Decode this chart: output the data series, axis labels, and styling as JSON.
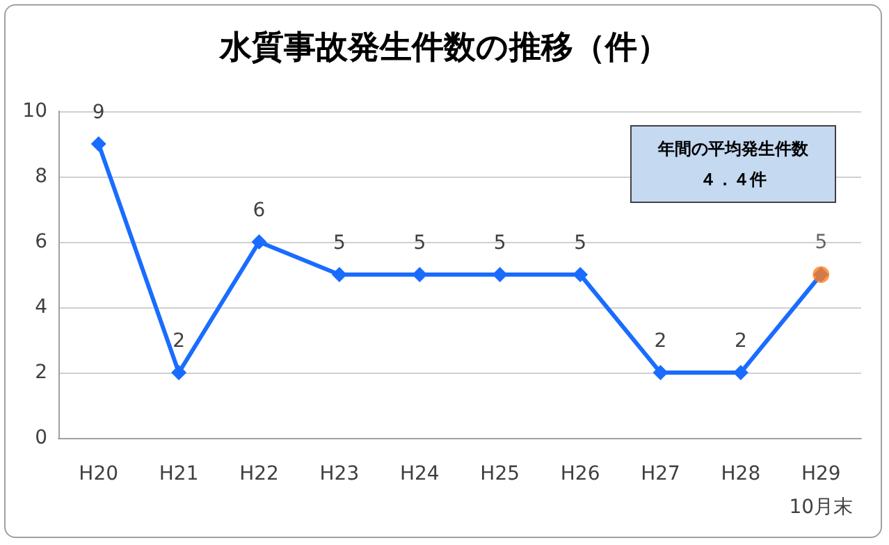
{
  "chart_data": {
    "type": "line",
    "title": "水質事故発生件数の推移（件）",
    "categories": [
      "H20",
      "H21",
      "H22",
      "H23",
      "H24",
      "H25",
      "H26",
      "H27",
      "H28",
      "H29\n10月末"
    ],
    "series": [
      {
        "color": "#1a6cff",
        "marker": "diamond",
        "values": [
          9,
          2,
          6,
          5,
          5,
          5,
          5,
          2,
          2,
          5
        ],
        "value_labels": [
          "9",
          "2",
          "6",
          "5",
          "5",
          "5",
          "5",
          "2",
          "2",
          null
        ]
      },
      {
        "type": "scatter",
        "color": "#ff7f1e",
        "marker": "circle",
        "values": [
          null,
          null,
          null,
          null,
          null,
          null,
          null,
          null,
          null,
          5
        ],
        "value_labels": [
          null,
          null,
          null,
          null,
          null,
          null,
          null,
          null,
          null,
          "5"
        ]
      }
    ],
    "ylim": [
      0,
      10
    ],
    "yticks": [
      0,
      2,
      4,
      6,
      8,
      10
    ],
    "grid": "y",
    "annotations": [
      "年間の平均発生件数",
      "４．４件"
    ]
  }
}
